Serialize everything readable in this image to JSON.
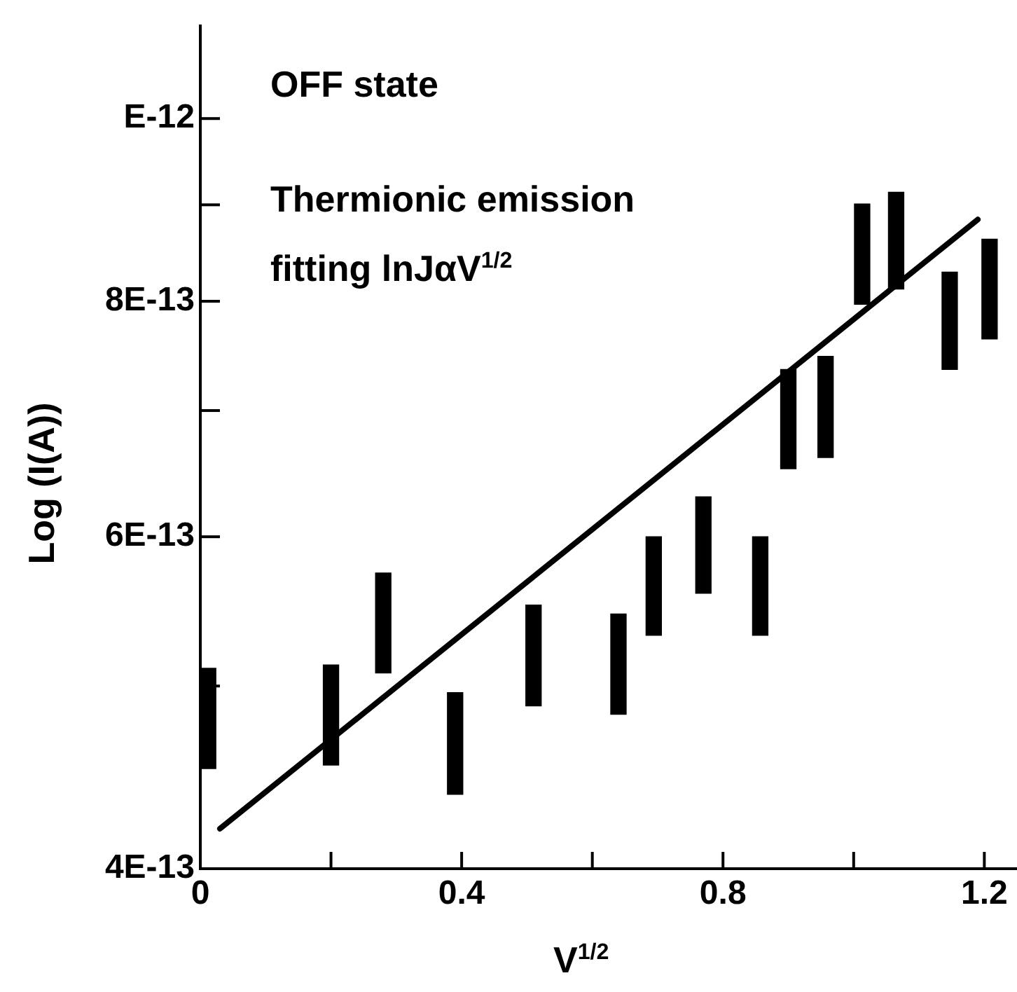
{
  "chart_data": {
    "type": "bar",
    "xlabel": "V$^{1/2}$",
    "ylabel": "Log (I(A))",
    "annotations": [
      "OFF state",
      "Thermionic emission fitting lnJαV$^{1/2}$"
    ],
    "log": "y",
    "marker": "none",
    "xlim": [
      0,
      1.25
    ],
    "xticks": [
      0,
      {
        "value": 0.2,
        "label": null
      },
      0.4,
      {
        "value": 0.6,
        "label": null
      },
      0.8,
      {
        "value": 1.0,
        "label": null
      },
      1.2
    ],
    "ylim": [
      4e-13,
      1.12e-12
    ],
    "yticks": [
      {
        "value": 4e-13,
        "label": "4E-13"
      },
      {
        "value": 5e-13,
        "label": null
      },
      {
        "value": 6e-13,
        "label": "6E-13"
      },
      {
        "value": 7e-13,
        "label": null
      },
      {
        "value": 8e-13,
        "label": "8E-13"
      },
      {
        "value": 9e-13,
        "label": null
      },
      {
        "value": 1e-12,
        "label": "E-12"
      }
    ],
    "series": [
      {
        "color": "#000000",
        "x": [
          0.012,
          0.2,
          0.28,
          0.39,
          0.51,
          0.64,
          0.694,
          0.77,
          0.857,
          0.9,
          0.957,
          1.013,
          1.065,
          1.147,
          1.208
        ],
        "base": [
          4.52e-13,
          4.54e-13,
          5.08e-13,
          4.38e-13,
          4.88e-13,
          4.83e-13,
          5.32e-13,
          5.6e-13,
          5.32e-13,
          6.52e-13,
          6.61e-13,
          7.97e-13,
          8.12e-13,
          7.36e-13,
          7.64e-13
        ],
        "values": [
          5.9e-14,
          5.9e-14,
          6.6e-14,
          5.8e-14,
          6.4e-14,
          6.3e-14,
          6.8e-14,
          7e-14,
          6.8e-14,
          8.4e-14,
          8.7e-14,
          1.04e-13,
          1.02e-13,
          9.3e-14,
          9.9e-14
        ]
      },
      {
        "type": "line",
        "color": "#000000",
        "x": [
          0.03,
          1.19
        ],
        "values": [
          4.2e-13,
          8.84e-13
        ]
      }
    ]
  }
}
